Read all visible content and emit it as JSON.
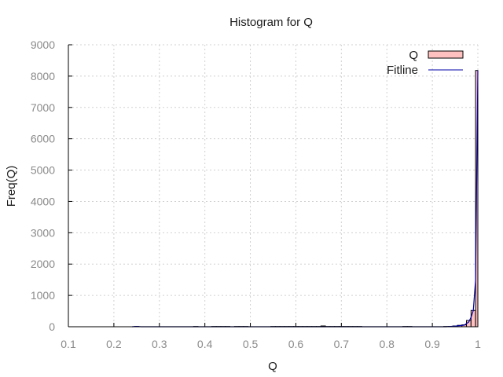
{
  "chart_data": {
    "type": "bar",
    "title": "Histogram for Q",
    "xlabel": "Q",
    "ylabel": "Freq(Q)",
    "xlim": [
      0.1,
      1.0
    ],
    "ylim": [
      0,
      9000
    ],
    "xticks": [
      "0.1",
      "0.2",
      "0.3",
      "0.4",
      "0.5",
      "0.6",
      "0.7",
      "0.8",
      "0.9",
      "1"
    ],
    "yticks": [
      "0",
      "1000",
      "2000",
      "3000",
      "4000",
      "5000",
      "6000",
      "7000",
      "8000",
      "9000"
    ],
    "grid": true,
    "legend_position": "top-right",
    "bin_width": 0.01,
    "series": [
      {
        "name": "Q",
        "kind": "histogram",
        "color": "#ffc0c0",
        "edge_color": "#000000",
        "bins": [
          [
            0.25,
            8
          ],
          [
            0.38,
            8
          ],
          [
            0.42,
            8
          ],
          [
            0.43,
            8
          ],
          [
            0.44,
            8
          ],
          [
            0.45,
            8
          ],
          [
            0.47,
            8
          ],
          [
            0.48,
            8
          ],
          [
            0.49,
            8
          ],
          [
            0.55,
            8
          ],
          [
            0.56,
            8
          ],
          [
            0.57,
            8
          ],
          [
            0.58,
            8
          ],
          [
            0.59,
            8
          ],
          [
            0.6,
            8
          ],
          [
            0.61,
            8
          ],
          [
            0.62,
            8
          ],
          [
            0.63,
            8
          ],
          [
            0.64,
            8
          ],
          [
            0.65,
            8
          ],
          [
            0.66,
            25
          ],
          [
            0.67,
            8
          ],
          [
            0.68,
            8
          ],
          [
            0.69,
            8
          ],
          [
            0.7,
            8
          ],
          [
            0.71,
            8
          ],
          [
            0.72,
            8
          ],
          [
            0.73,
            8
          ],
          [
            0.74,
            8
          ],
          [
            0.84,
            8
          ],
          [
            0.85,
            8
          ],
          [
            0.93,
            8
          ],
          [
            0.94,
            10
          ],
          [
            0.95,
            25
          ],
          [
            0.96,
            45
          ],
          [
            0.97,
            60
          ],
          [
            0.98,
            200
          ],
          [
            0.99,
            520
          ],
          [
            1.0,
            8180
          ]
        ]
      },
      {
        "name": "Fitline",
        "kind": "line",
        "color": "#0000aa",
        "points": [
          [
            0.24,
            0
          ],
          [
            0.25,
            10
          ],
          [
            0.26,
            0
          ],
          [
            0.93,
            0
          ],
          [
            0.94,
            10
          ],
          [
            0.95,
            20
          ],
          [
            0.96,
            35
          ],
          [
            0.97,
            50
          ],
          [
            0.98,
            150
          ],
          [
            0.985,
            300
          ],
          [
            0.99,
            520
          ],
          [
            0.995,
            1500
          ],
          [
            1.0,
            8180
          ]
        ]
      }
    ]
  }
}
